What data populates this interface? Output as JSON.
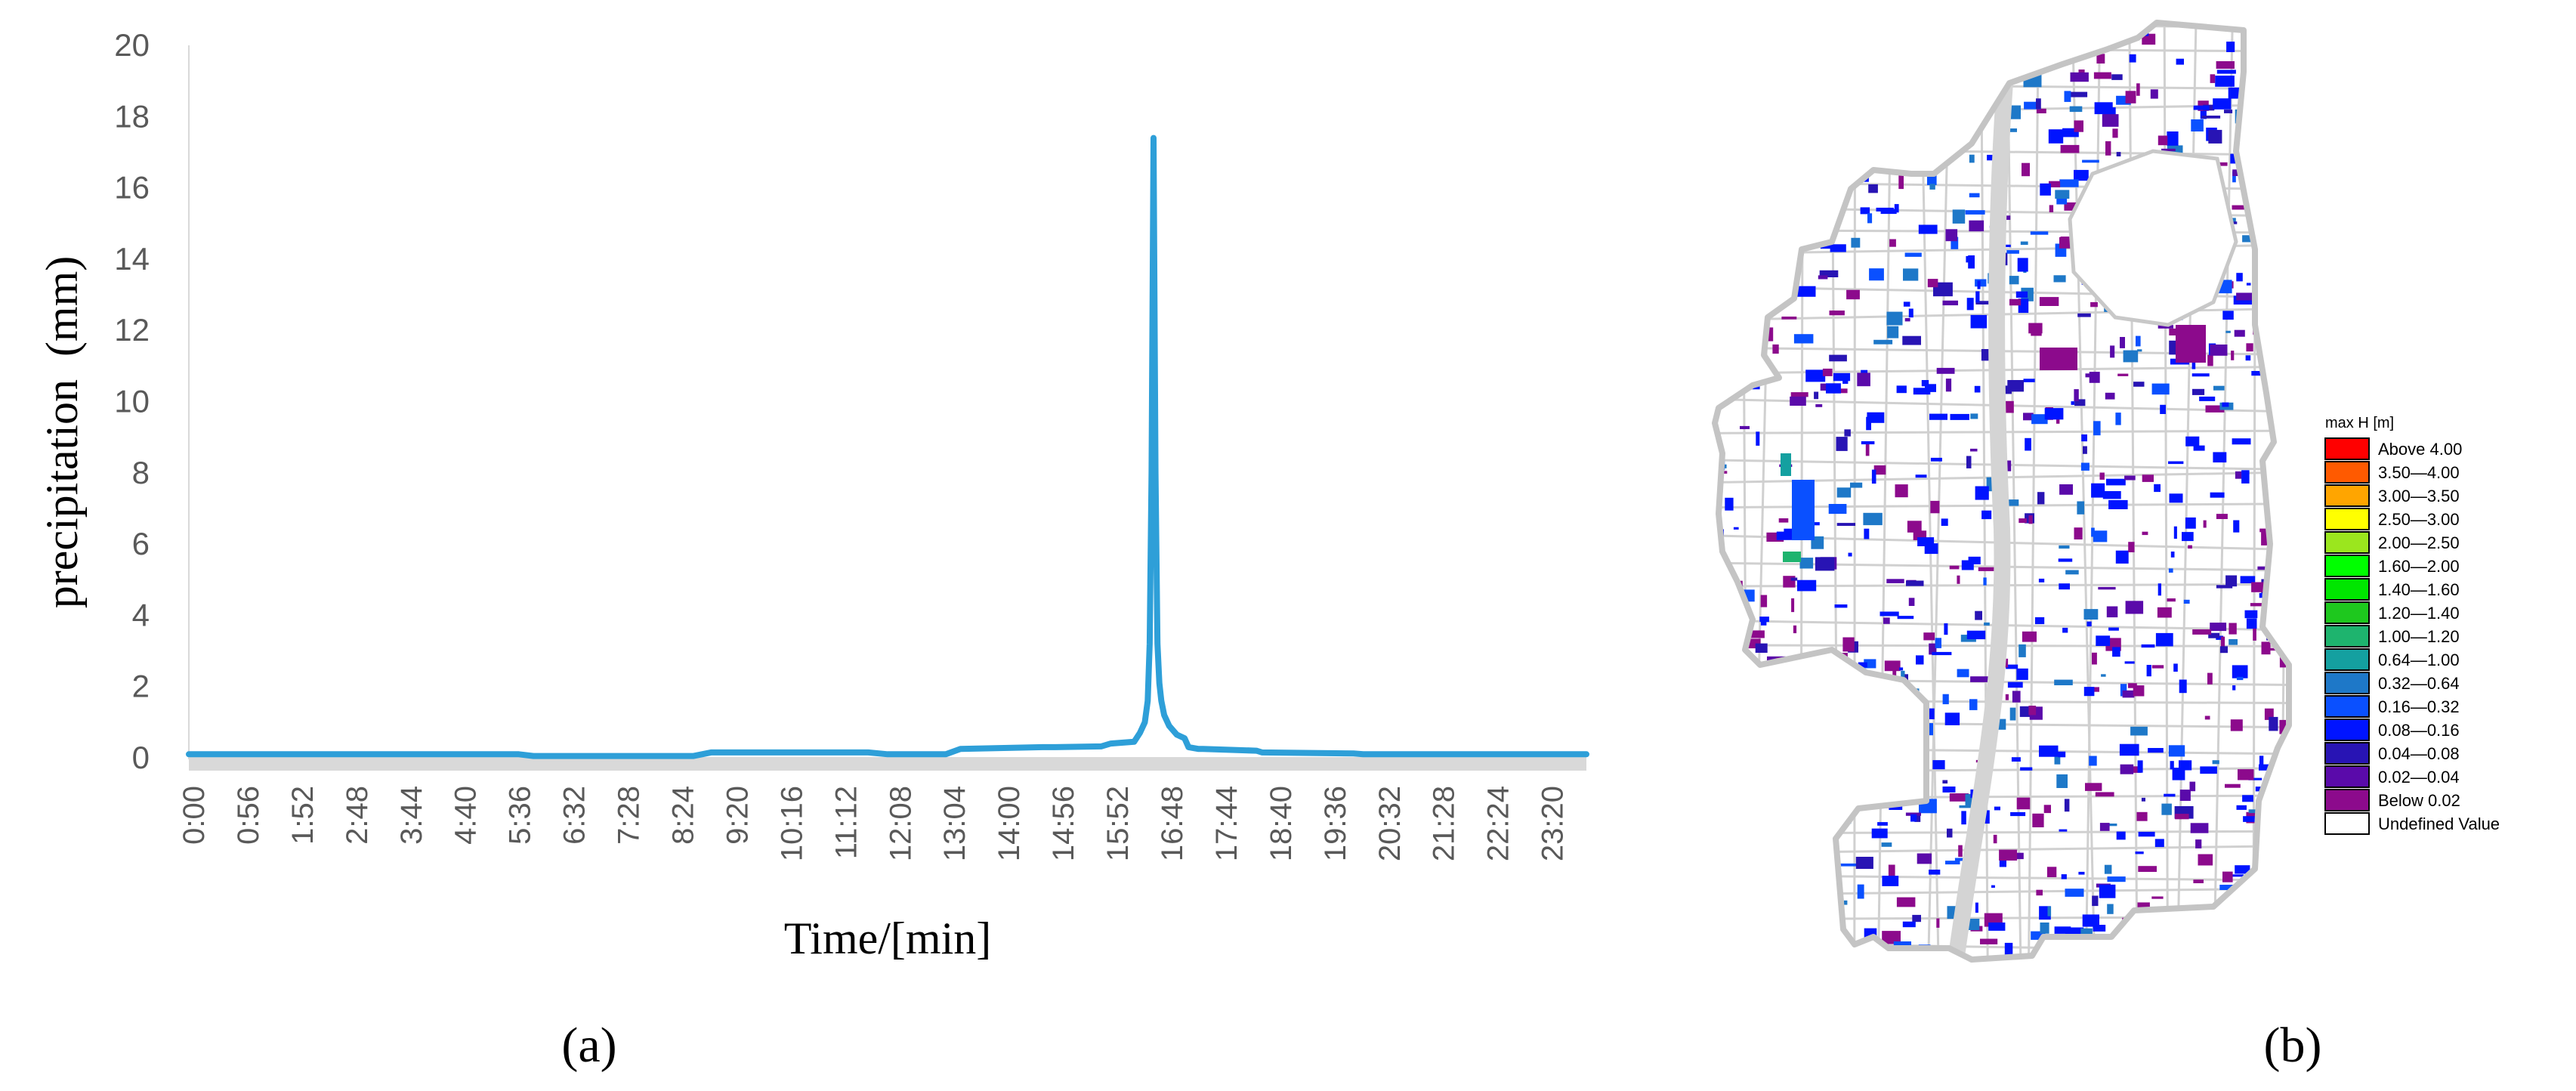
{
  "chart_data": [
    {
      "type": "line",
      "panel_label": "(a)",
      "xlabel": "Time/[min]",
      "ylabel": "precipitation  (mm)",
      "ylim": [
        0,
        20
      ],
      "y_ticks": [
        "0",
        "2",
        "4",
        "6",
        "8",
        "10",
        "12",
        "14",
        "16",
        "18",
        "20"
      ],
      "x_ticks": [
        "0:00",
        "0:56",
        "1:52",
        "2:48",
        "3:44",
        "4:40",
        "5:36",
        "6:32",
        "7:28",
        "8:24",
        "9:20",
        "10:16",
        "11:12",
        "12:08",
        "13:04",
        "14:00",
        "14:56",
        "15:52",
        "16:48",
        "17:44",
        "18:40",
        "19:36",
        "20:32",
        "21:28",
        "22:24",
        "23:20"
      ],
      "x_range_min": [
        0,
        1440
      ],
      "series": [
        {
          "color": "#2e9fd8",
          "x": [
            0,
            340,
            355,
            520,
            538,
            700,
            720,
            780,
            795,
            880,
            890,
            940,
            950,
            974,
            980,
            985,
            988,
            990,
            992,
            994,
            996,
            998,
            1000,
            1002,
            1005,
            1010,
            1018,
            1026,
            1030,
            1040,
            1045,
            1100,
            1106,
            1200,
            1210,
            1440
          ],
          "y": [
            0.1,
            0.1,
            0.05,
            0.05,
            0.15,
            0.15,
            0.1,
            0.1,
            0.25,
            0.3,
            0.3,
            0.32,
            0.4,
            0.45,
            0.7,
            1.0,
            1.6,
            3.2,
            8.0,
            17.4,
            8.0,
            3.2,
            2.1,
            1.6,
            1.2,
            0.9,
            0.65,
            0.55,
            0.3,
            0.25,
            0.25,
            0.2,
            0.15,
            0.12,
            0.1,
            0.1
          ]
        }
      ]
    },
    {
      "type": "map",
      "panel_label": "(b)",
      "legend": {
        "title": "max H [m]",
        "items": [
          {
            "label": "Above 4.00",
            "color": "#ff0000"
          },
          {
            "label": "3.50—4.00",
            "color": "#ff5a00"
          },
          {
            "label": "3.00—3.50",
            "color": "#ffa500"
          },
          {
            "label": "2.50—3.00",
            "color": "#ffff00"
          },
          {
            "label": "2.00—2.50",
            "color": "#9be61e"
          },
          {
            "label": "1.60—2.00",
            "color": "#00ff00"
          },
          {
            "label": "1.40—1.60",
            "color": "#00e600"
          },
          {
            "label": "1.20—1.40",
            "color": "#1ec81e"
          },
          {
            "label": "1.00—1.20",
            "color": "#1eb46e"
          },
          {
            "label": "0.64—1.00",
            "color": "#14a0a0"
          },
          {
            "label": "0.32—0.64",
            "color": "#1e78c8"
          },
          {
            "label": "0.16—0.32",
            "color": "#0a50ff"
          },
          {
            "label": "0.08—0.16",
            "color": "#0014ff"
          },
          {
            "label": "0.04—0.08",
            "color": "#2814b4"
          },
          {
            "label": "0.02—0.04",
            "color": "#5a0aaa"
          },
          {
            "label": "Below 0.02",
            "color": "#8c0a8c"
          },
          {
            "label": "Undefined Value",
            "color": "#ffffff"
          }
        ]
      }
    }
  ]
}
